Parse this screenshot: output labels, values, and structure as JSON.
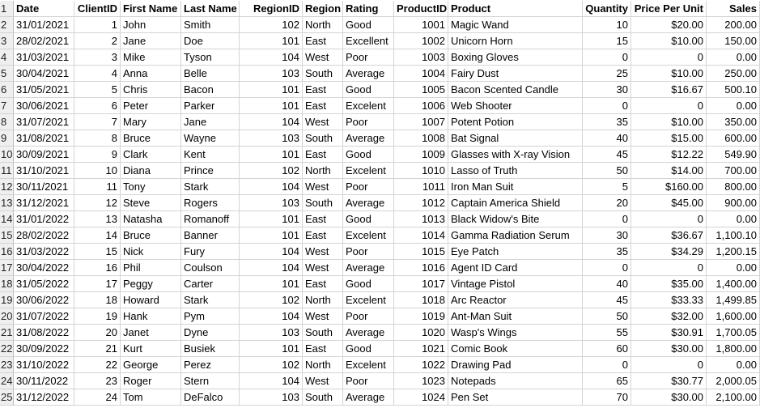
{
  "headers": [
    "Date",
    "ClientID",
    "First Name",
    "Last Name",
    "RegionID",
    "Region",
    "Rating",
    "ProductID",
    "Product",
    "Quantity",
    "Price Per Unit",
    "Sales"
  ],
  "rows": [
    [
      "31/01/2021",
      "1",
      "John",
      "Smith",
      "102",
      "North",
      "Good",
      "1001",
      "Magic Wand",
      "10",
      "$20.00",
      "200.00"
    ],
    [
      "28/02/2021",
      "2",
      "Jane",
      "Doe",
      "101",
      "East",
      "Excellent",
      "1002",
      "Unicorn Horn",
      "15",
      "$10.00",
      "150.00"
    ],
    [
      "31/03/2021",
      "3",
      "Mike",
      "Tyson",
      "104",
      "West",
      "Poor",
      "1003",
      "Boxing Gloves",
      "0",
      "0",
      "0.00"
    ],
    [
      "30/04/2021",
      "4",
      "Anna",
      "Belle",
      "103",
      "South",
      "Average",
      "1004",
      "Fairy Dust",
      "25",
      "$10.00",
      "250.00"
    ],
    [
      "31/05/2021",
      "5",
      "Chris",
      "Bacon",
      "101",
      "East",
      "Good",
      "1005",
      "Bacon Scented Candle",
      "30",
      "$16.67",
      "500.10"
    ],
    [
      "30/06/2021",
      "6",
      "Peter",
      "Parker",
      "101",
      "East",
      "Excelent",
      "1006",
      "Web Shooter",
      "0",
      "0",
      "0.00"
    ],
    [
      "31/07/2021",
      "7",
      "Mary",
      "Jane",
      "104",
      "West",
      "Poor",
      "1007",
      "Potent Potion",
      "35",
      "$10.00",
      "350.00"
    ],
    [
      "31/08/2021",
      "8",
      "Bruce",
      "Wayne",
      "103",
      "South",
      "Average",
      "1008",
      "Bat Signal",
      "40",
      "$15.00",
      "600.00"
    ],
    [
      "30/09/2021",
      "9",
      "Clark",
      "Kent",
      "101",
      "East",
      "Good",
      "1009",
      "Glasses with X-ray Vision",
      "45",
      "$12.22",
      "549.90"
    ],
    [
      "31/10/2021",
      "10",
      "Diana",
      "Prince",
      "102",
      "North",
      "Excelent",
      "1010",
      "Lasso of Truth",
      "50",
      "$14.00",
      "700.00"
    ],
    [
      "30/11/2021",
      "11",
      "Tony",
      "Stark",
      "104",
      "West",
      "Poor",
      "1011",
      "Iron Man Suit",
      "5",
      "$160.00",
      "800.00"
    ],
    [
      "31/12/2021",
      "12",
      "Steve",
      "Rogers",
      "103",
      "South",
      "Average",
      "1012",
      "Captain America Shield",
      "20",
      "$45.00",
      "900.00"
    ],
    [
      "31/01/2022",
      "13",
      "Natasha",
      "Romanoff",
      "101",
      "East",
      "Good",
      "1013",
      "Black Widow's Bite",
      "0",
      "0",
      "0.00"
    ],
    [
      "28/02/2022",
      "14",
      "Bruce",
      "Banner",
      "101",
      "East",
      "Excelent",
      "1014",
      "Gamma Radiation Serum",
      "30",
      "$36.67",
      "1,100.10"
    ],
    [
      "31/03/2022",
      "15",
      "Nick",
      "Fury",
      "104",
      "West",
      "Poor",
      "1015",
      "Eye Patch",
      "35",
      "$34.29",
      "1,200.15"
    ],
    [
      "30/04/2022",
      "16",
      "Phil",
      "Coulson",
      "104",
      "West",
      "Average",
      "1016",
      "Agent ID Card",
      "0",
      "0",
      "0.00"
    ],
    [
      "31/05/2022",
      "17",
      "Peggy",
      "Carter",
      "101",
      "East",
      "Good",
      "1017",
      "Vintage Pistol",
      "40",
      "$35.00",
      "1,400.00"
    ],
    [
      "30/06/2022",
      "18",
      "Howard",
      "Stark",
      "102",
      "North",
      "Excelent",
      "1018",
      "Arc Reactor",
      "45",
      "$33.33",
      "1,499.85"
    ],
    [
      "31/07/2022",
      "19",
      "Hank",
      "Pym",
      "104",
      "West",
      "Poor",
      "1019",
      "Ant-Man Suit",
      "50",
      "$32.00",
      "1,600.00"
    ],
    [
      "31/08/2022",
      "20",
      "Janet",
      "Dyne",
      "103",
      "South",
      "Average",
      "1020",
      "Wasp's Wings",
      "55",
      "$30.91",
      "1,700.05"
    ],
    [
      "30/09/2022",
      "21",
      "Kurt",
      "Busiek",
      "101",
      "East",
      "Good",
      "1021",
      "Comic Book",
      "60",
      "$30.00",
      "1,800.00"
    ],
    [
      "31/10/2022",
      "22",
      "George",
      "Perez",
      "102",
      "North",
      "Excelent",
      "1022",
      "Drawing Pad",
      "0",
      "0",
      "0.00"
    ],
    [
      "30/11/2022",
      "23",
      "Roger",
      "Stern",
      "104",
      "West",
      "Poor",
      "1023",
      "Notepads",
      "65",
      "$30.77",
      "2,000.05"
    ],
    [
      "31/12/2022",
      "24",
      "Tom",
      "DeFalco",
      "103",
      "South",
      "Average",
      "1024",
      "Pen Set",
      "70",
      "$30.00",
      "2,100.00"
    ]
  ],
  "row_numbers": [
    "1",
    "2",
    "3",
    "4",
    "5",
    "6",
    "7",
    "8",
    "9",
    "10",
    "11",
    "12",
    "13",
    "14",
    "15",
    "16",
    "17",
    "18",
    "19",
    "20",
    "21",
    "22",
    "23",
    "24",
    "25"
  ]
}
